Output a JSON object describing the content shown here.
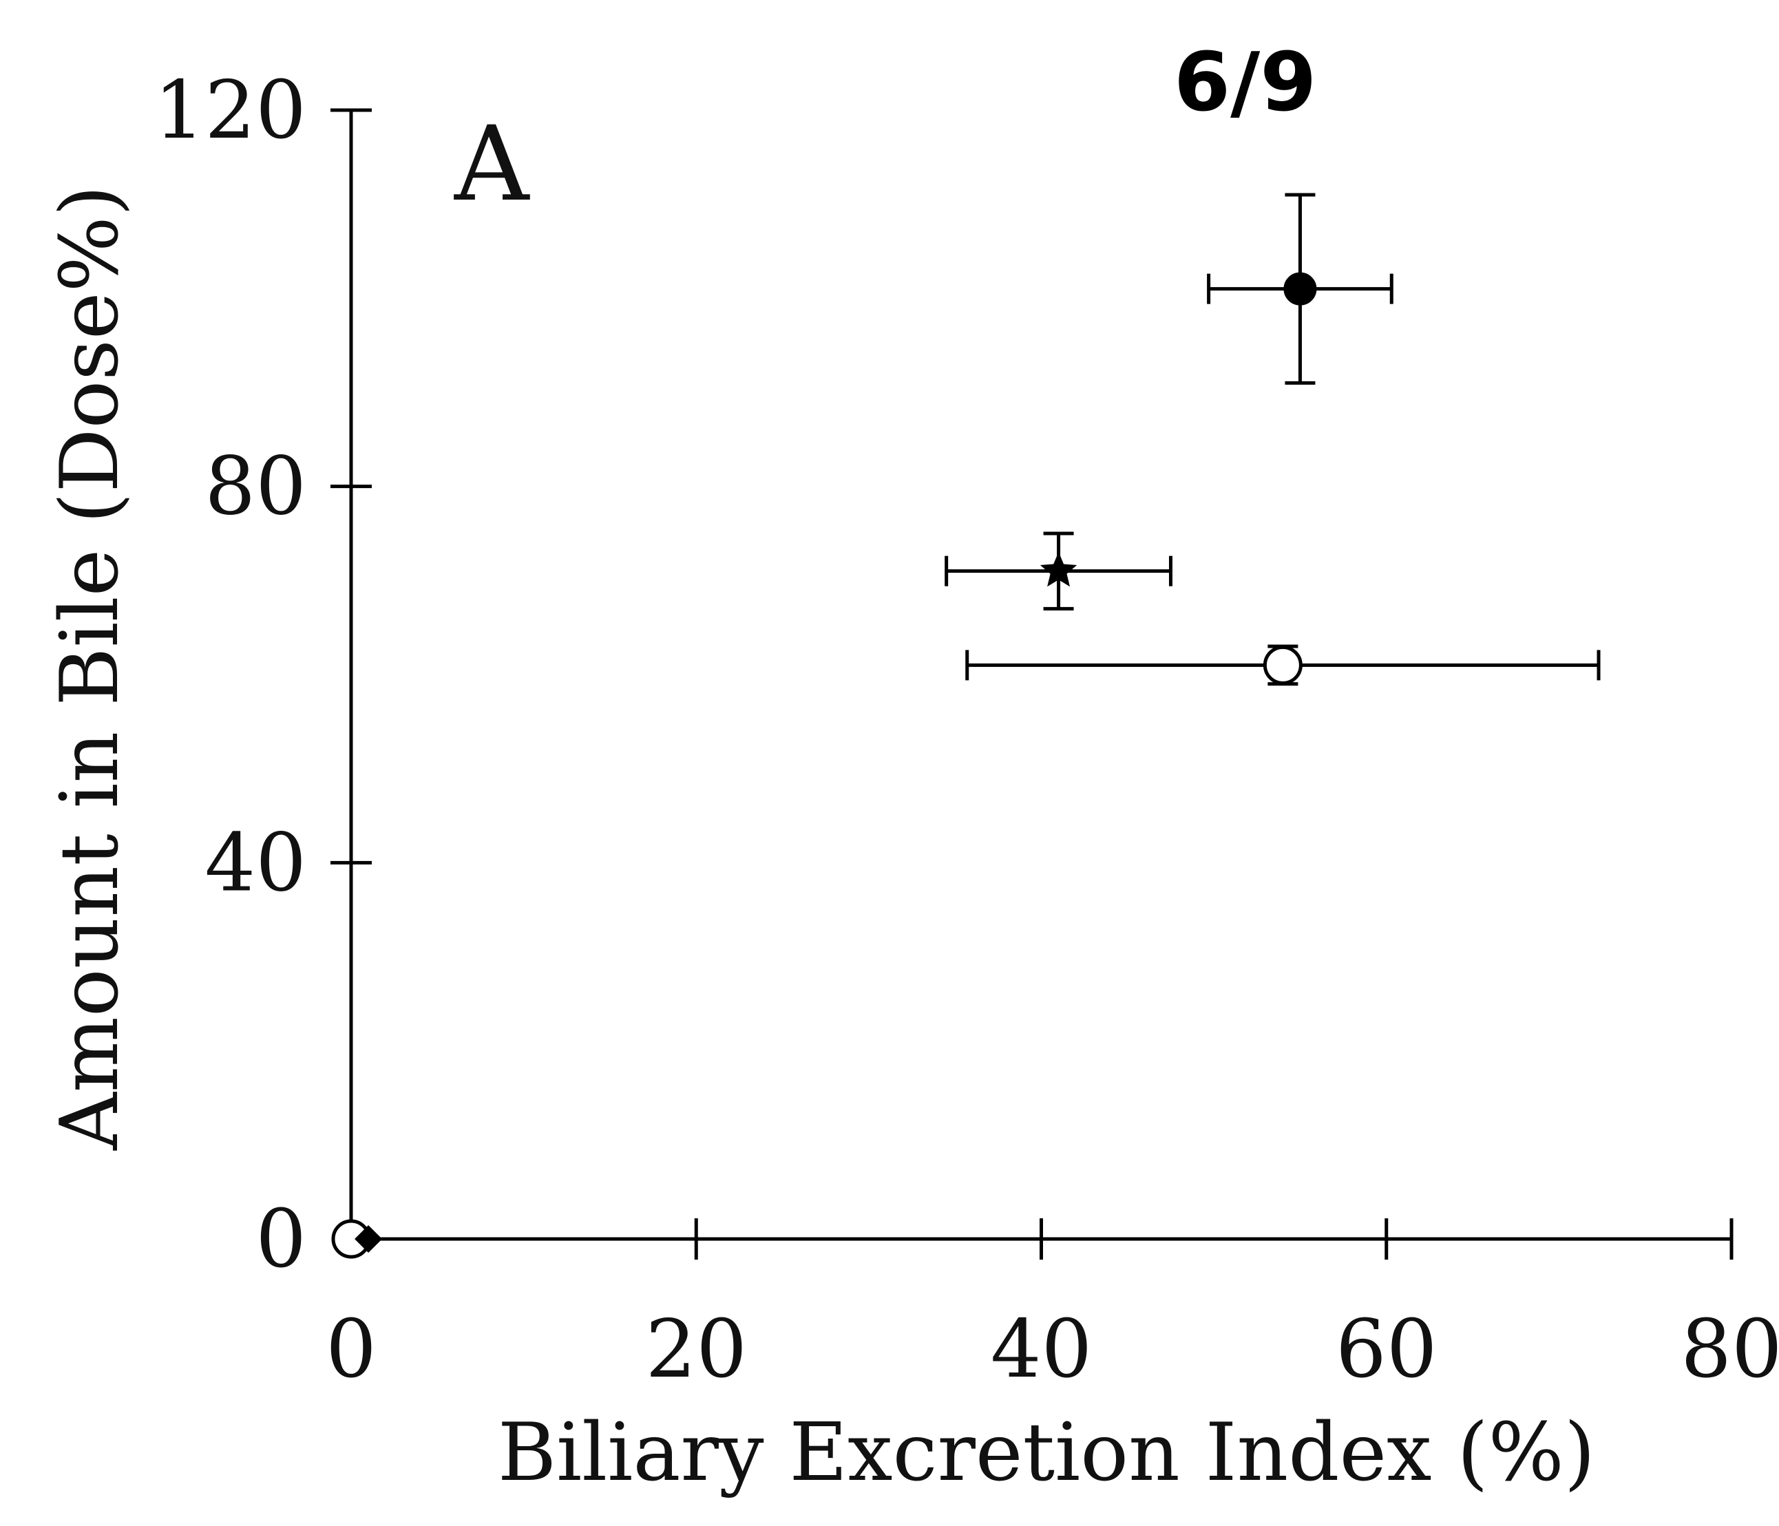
{
  "page_number": "6/9",
  "panel_label": "A",
  "chart_data": {
    "type": "scatter",
    "title": "",
    "xlabel": "Biliary Excretion Index (%)",
    "ylabel": "Amount in Bile (Dose%)",
    "xlim": [
      0,
      80
    ],
    "ylim": [
      0,
      120
    ],
    "x_ticks": [
      0,
      20,
      40,
      60,
      80
    ],
    "x_tick_labels": [
      "0",
      "20",
      "40",
      "60",
      "80"
    ],
    "y_ticks": [
      0,
      40,
      80,
      120
    ],
    "y_tick_labels": [
      "0",
      "40",
      "80",
      "120"
    ],
    "grid": false,
    "legend": null,
    "points": [
      {
        "marker": "filled-circle",
        "x": 55,
        "y": 101,
        "x_err": 5.3,
        "y_err": 10
      },
      {
        "marker": "filled-star",
        "x": 41,
        "y": 71,
        "x_err": 6.5,
        "y_err": 4
      },
      {
        "marker": "open-circle",
        "x": 54,
        "y": 61,
        "x_err": 18.3,
        "y_err": 2
      },
      {
        "marker": "open-circle",
        "x": 0,
        "y": 0
      },
      {
        "marker": "filled-diamond",
        "x": 1,
        "y": 0
      }
    ]
  }
}
